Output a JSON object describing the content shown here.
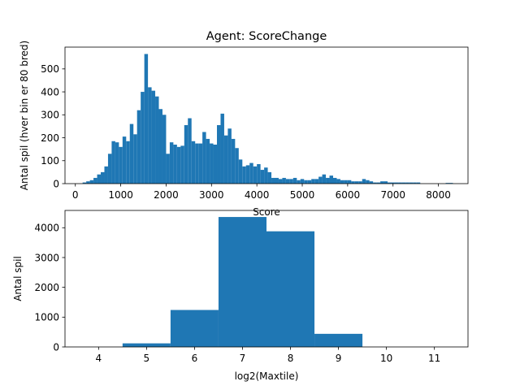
{
  "chart_data": [
    {
      "type": "bar",
      "title": "Agent: ScoreChange",
      "xlabel": "Score",
      "ylabel": "Antal spil (hver bin er 80 bred)",
      "bin_width": 80,
      "xlim": [
        -228,
        8652
      ],
      "ylim": [
        0,
        595
      ],
      "xticks": [
        0,
        1000,
        2000,
        3000,
        4000,
        5000,
        6000,
        7000,
        8000
      ],
      "yticks": [
        0,
        100,
        200,
        300,
        400,
        500
      ],
      "bar_color": "#1f77b4",
      "bins": [
        {
          "x": 160,
          "y": 5
        },
        {
          "x": 240,
          "y": 10
        },
        {
          "x": 320,
          "y": 15
        },
        {
          "x": 400,
          "y": 25
        },
        {
          "x": 480,
          "y": 40
        },
        {
          "x": 560,
          "y": 50
        },
        {
          "x": 640,
          "y": 75
        },
        {
          "x": 720,
          "y": 130
        },
        {
          "x": 800,
          "y": 185
        },
        {
          "x": 880,
          "y": 180
        },
        {
          "x": 960,
          "y": 160
        },
        {
          "x": 1040,
          "y": 205
        },
        {
          "x": 1120,
          "y": 185
        },
        {
          "x": 1200,
          "y": 260
        },
        {
          "x": 1280,
          "y": 215
        },
        {
          "x": 1360,
          "y": 320
        },
        {
          "x": 1440,
          "y": 400
        },
        {
          "x": 1520,
          "y": 565
        },
        {
          "x": 1600,
          "y": 420
        },
        {
          "x": 1680,
          "y": 405
        },
        {
          "x": 1760,
          "y": 380
        },
        {
          "x": 1840,
          "y": 325
        },
        {
          "x": 1920,
          "y": 300
        },
        {
          "x": 2000,
          "y": 130
        },
        {
          "x": 2080,
          "y": 180
        },
        {
          "x": 2160,
          "y": 170
        },
        {
          "x": 2240,
          "y": 160
        },
        {
          "x": 2320,
          "y": 165
        },
        {
          "x": 2400,
          "y": 255
        },
        {
          "x": 2480,
          "y": 285
        },
        {
          "x": 2560,
          "y": 185
        },
        {
          "x": 2640,
          "y": 175
        },
        {
          "x": 2720,
          "y": 175
        },
        {
          "x": 2800,
          "y": 225
        },
        {
          "x": 2880,
          "y": 195
        },
        {
          "x": 2960,
          "y": 175
        },
        {
          "x": 3040,
          "y": 170
        },
        {
          "x": 3120,
          "y": 255
        },
        {
          "x": 3200,
          "y": 305
        },
        {
          "x": 3280,
          "y": 210
        },
        {
          "x": 3360,
          "y": 240
        },
        {
          "x": 3440,
          "y": 195
        },
        {
          "x": 3520,
          "y": 155
        },
        {
          "x": 3600,
          "y": 105
        },
        {
          "x": 3680,
          "y": 75
        },
        {
          "x": 3760,
          "y": 80
        },
        {
          "x": 3840,
          "y": 90
        },
        {
          "x": 3920,
          "y": 75
        },
        {
          "x": 4000,
          "y": 85
        },
        {
          "x": 4080,
          "y": 60
        },
        {
          "x": 4160,
          "y": 70
        },
        {
          "x": 4240,
          "y": 50
        },
        {
          "x": 4320,
          "y": 25
        },
        {
          "x": 4400,
          "y": 25
        },
        {
          "x": 4480,
          "y": 20
        },
        {
          "x": 4560,
          "y": 25
        },
        {
          "x": 4640,
          "y": 20
        },
        {
          "x": 4720,
          "y": 20
        },
        {
          "x": 4800,
          "y": 25
        },
        {
          "x": 4880,
          "y": 15
        },
        {
          "x": 4960,
          "y": 20
        },
        {
          "x": 5040,
          "y": 15
        },
        {
          "x": 5120,
          "y": 15
        },
        {
          "x": 5200,
          "y": 20
        },
        {
          "x": 5280,
          "y": 20
        },
        {
          "x": 5360,
          "y": 30
        },
        {
          "x": 5440,
          "y": 40
        },
        {
          "x": 5520,
          "y": 25
        },
        {
          "x": 5600,
          "y": 35
        },
        {
          "x": 5680,
          "y": 25
        },
        {
          "x": 5760,
          "y": 20
        },
        {
          "x": 5840,
          "y": 15
        },
        {
          "x": 5920,
          "y": 15
        },
        {
          "x": 6000,
          "y": 15
        },
        {
          "x": 6080,
          "y": 10
        },
        {
          "x": 6160,
          "y": 10
        },
        {
          "x": 6240,
          "y": 10
        },
        {
          "x": 6320,
          "y": 20
        },
        {
          "x": 6400,
          "y": 15
        },
        {
          "x": 6480,
          "y": 10
        },
        {
          "x": 6560,
          "y": 5
        },
        {
          "x": 6640,
          "y": 5
        },
        {
          "x": 6720,
          "y": 10
        },
        {
          "x": 6800,
          "y": 10
        },
        {
          "x": 6880,
          "y": 5
        },
        {
          "x": 6960,
          "y": 5
        },
        {
          "x": 7040,
          "y": 5
        },
        {
          "x": 7120,
          "y": 5
        },
        {
          "x": 7200,
          "y": 5
        },
        {
          "x": 7280,
          "y": 5
        },
        {
          "x": 7360,
          "y": 5
        },
        {
          "x": 7440,
          "y": 5
        },
        {
          "x": 7520,
          "y": 5
        },
        {
          "x": 8160,
          "y": 3
        },
        {
          "x": 8240,
          "y": 3
        }
      ]
    },
    {
      "type": "bar",
      "title": "",
      "xlabel": "log2(Maxtile)",
      "ylabel": "Antal spil",
      "xlim": [
        3.3,
        11.7
      ],
      "ylim": [
        0,
        4580
      ],
      "xticks": [
        4,
        5,
        6,
        7,
        8,
        9,
        10,
        11
      ],
      "yticks": [
        0,
        1000,
        2000,
        3000,
        4000
      ],
      "bar_color": "#1f77b4",
      "bars": [
        {
          "left": 4.5,
          "right": 5.5,
          "value": 120
        },
        {
          "left": 5.5,
          "right": 6.5,
          "value": 1240
        },
        {
          "left": 6.5,
          "right": 7.5,
          "value": 4360
        },
        {
          "left": 7.5,
          "right": 8.5,
          "value": 3880
        },
        {
          "left": 8.5,
          "right": 9.5,
          "value": 440
        }
      ]
    }
  ]
}
